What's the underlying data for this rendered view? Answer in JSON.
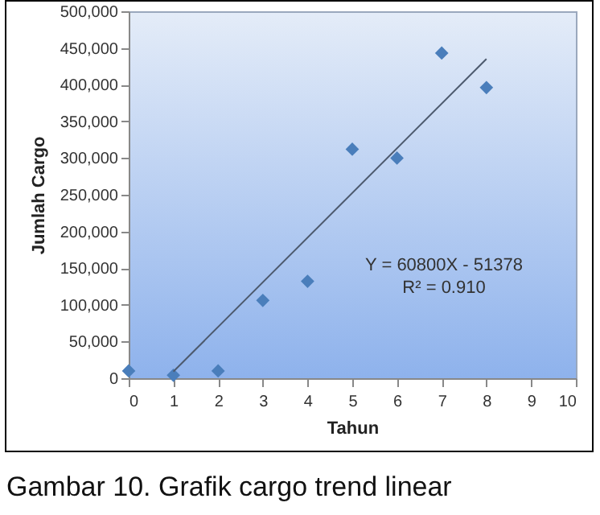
{
  "chart_data": {
    "type": "scatter",
    "title": "Gambar 10. Grafik cargo trend linear",
    "xlabel": "Tahun",
    "ylabel": "Jumlah Cargo",
    "x": [
      0,
      1,
      2,
      3,
      4,
      5,
      6,
      7,
      8
    ],
    "series": [
      {
        "color": "#4a7ebb",
        "marker": "diamond",
        "values": [
          10000,
          4000,
          10000,
          106000,
          132000,
          312000,
          300000,
          443000,
          396000
        ]
      },
      {
        "type": "line",
        "color": "#4d5a6e",
        "marker": "none",
        "x": [
          1,
          8
        ],
        "values": [
          9000,
          435000
        ]
      }
    ],
    "annotations": [
      "Y = 60800X - 51378",
      "R² = 0.910"
    ],
    "xlim": [
      0,
      10
    ],
    "xticks": [
      0,
      1,
      2,
      3,
      4,
      5,
      6,
      7,
      8,
      9,
      10
    ],
    "ylim": [
      0,
      500000
    ],
    "yticks": [
      0,
      {
        "value": 50000,
        "label": "50,000"
      },
      {
        "value": 100000,
        "label": "100,000"
      },
      {
        "value": 150000,
        "label": "150,000"
      },
      {
        "value": 200000,
        "label": "200,000"
      },
      {
        "value": 250000,
        "label": "250,000"
      },
      {
        "value": 300000,
        "label": "300,000"
      },
      {
        "value": 350000,
        "label": "350,000"
      },
      {
        "value": 400000,
        "label": "400,000"
      },
      {
        "value": 450000,
        "label": "450,000"
      },
      {
        "value": 500000,
        "label": "500,000"
      }
    ],
    "grid": false
  }
}
